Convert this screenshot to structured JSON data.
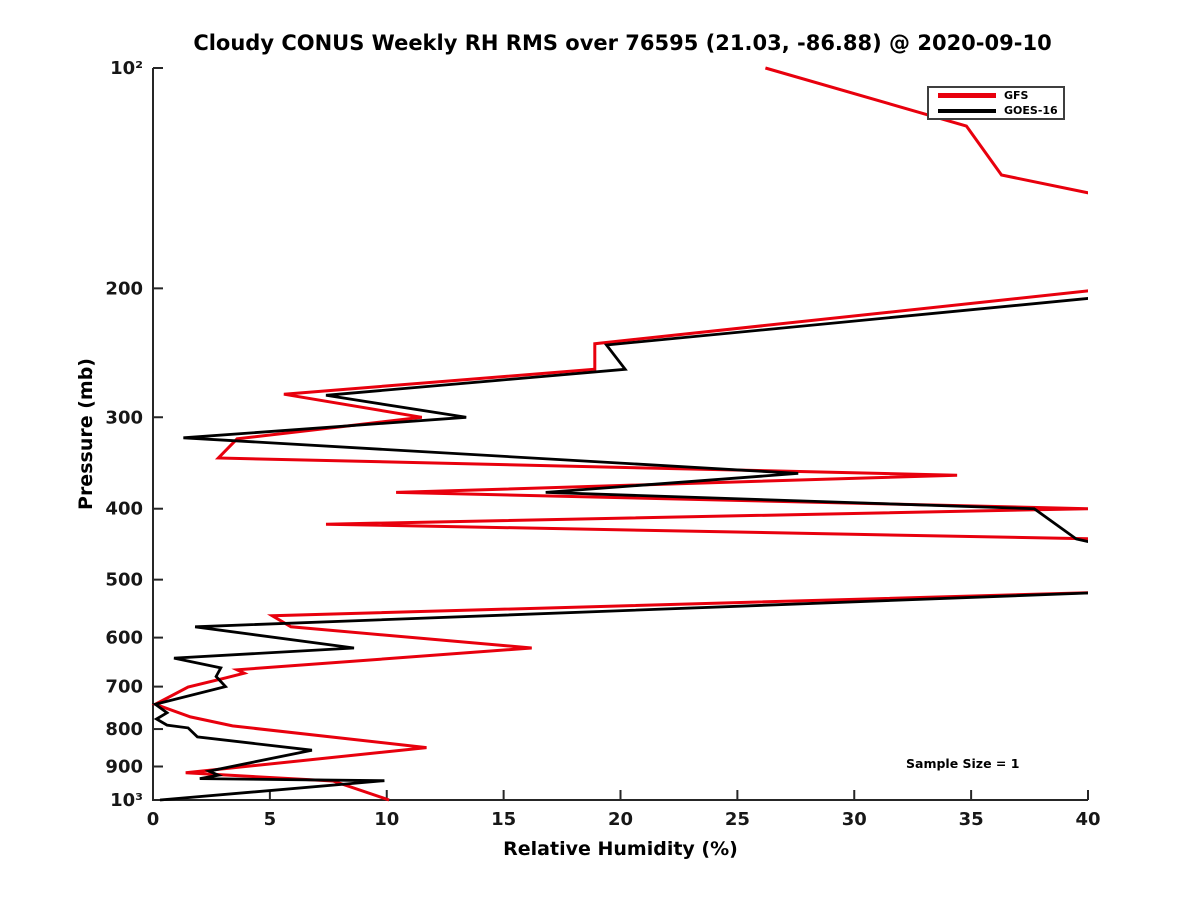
{
  "chart_data": {
    "type": "line",
    "title": "Cloudy CONUS Weekly RH RMS over 76595 (21.03, -86.88) @ 2020-09-10",
    "xlabel": "Relative Humidity (%)",
    "ylabel": "Pressure (mb)",
    "xlim": [
      0,
      40
    ],
    "ylim_pressure_mb": [
      100,
      1000
    ],
    "y_scale": "log10-inverted",
    "grid": false,
    "legend_position": "upper-right-inside",
    "annotation": "Sample Size = 1",
    "xticks": [
      0,
      5,
      10,
      15,
      20,
      25,
      30,
      35,
      40
    ],
    "yticks": [
      {
        "p": 100,
        "label": "10²"
      },
      {
        "p": 200,
        "label": "200"
      },
      {
        "p": 300,
        "label": "300"
      },
      {
        "p": 400,
        "label": "400"
      },
      {
        "p": 500,
        "label": "500"
      },
      {
        "p": 600,
        "label": "600"
      },
      {
        "p": 700,
        "label": "700"
      },
      {
        "p": 800,
        "label": "800"
      },
      {
        "p": 900,
        "label": "900"
      },
      {
        "p": 1000,
        "label": "10³"
      }
    ],
    "series": [
      {
        "name": "GFS",
        "color": "#e8000d",
        "stroke_width": 3,
        "points_rh_p": [
          [
            26.2,
            100
          ],
          [
            34.8,
            120
          ],
          [
            36.3,
            140
          ],
          [
            43,
            155
          ],
          [
            41,
            200
          ],
          [
            18.9,
            238
          ],
          [
            18.9,
            258
          ],
          [
            5.6,
            279
          ],
          [
            11.5,
            300
          ],
          [
            3.6,
            321
          ],
          [
            2.8,
            341
          ],
          [
            34.4,
            360
          ],
          [
            10.4,
            380
          ],
          [
            40.0,
            400
          ],
          [
            7.4,
            420
          ],
          [
            40.5,
            440
          ],
          [
            45,
            480
          ],
          [
            41,
            520
          ],
          [
            5.1,
            560
          ],
          [
            5.9,
            580
          ],
          [
            16.2,
            620
          ],
          [
            3.6,
            664
          ],
          [
            3.9,
            671
          ],
          [
            3.1,
            681
          ],
          [
            1.5,
            701
          ],
          [
            0.1,
            740
          ],
          [
            1.6,
            770
          ],
          [
            3.4,
            792
          ],
          [
            11.7,
            848
          ],
          [
            1.4,
            918
          ],
          [
            7.7,
            942
          ],
          [
            10.1,
            1000
          ]
        ]
      },
      {
        "name": "GOES-16",
        "color": "#000000",
        "stroke_width": 2.8,
        "points_rh_p": [
          [
            41,
            205
          ],
          [
            19.4,
            239
          ],
          [
            20.2,
            258
          ],
          [
            7.4,
            280
          ],
          [
            13.4,
            300
          ],
          [
            1.3,
            320
          ],
          [
            27.6,
            358
          ],
          [
            16.8,
            380
          ],
          [
            37.7,
            400
          ],
          [
            39.5,
            440
          ],
          [
            45,
            480
          ],
          [
            41,
            520
          ],
          [
            1.8,
            580
          ],
          [
            8.6,
            620
          ],
          [
            0.9,
            640
          ],
          [
            2.9,
            660
          ],
          [
            2.7,
            678
          ],
          [
            3.1,
            700
          ],
          [
            0.1,
            740
          ],
          [
            0.6,
            760
          ],
          [
            0.15,
            775
          ],
          [
            0.6,
            790
          ],
          [
            1.5,
            797
          ],
          [
            1.9,
            820
          ],
          [
            6.8,
            855
          ],
          [
            2.4,
            913
          ],
          [
            2.8,
            925
          ],
          [
            2.0,
            935
          ],
          [
            9.9,
            941
          ],
          [
            0.3,
            1000
          ]
        ]
      }
    ]
  },
  "legend": {
    "items": [
      {
        "label": "GFS",
        "color": "#e8000d"
      },
      {
        "label": "GOES-16",
        "color": "#000000"
      }
    ]
  },
  "colors": {
    "axis": "#262626",
    "tick_label": "#171717",
    "background": "#ffffff"
  }
}
